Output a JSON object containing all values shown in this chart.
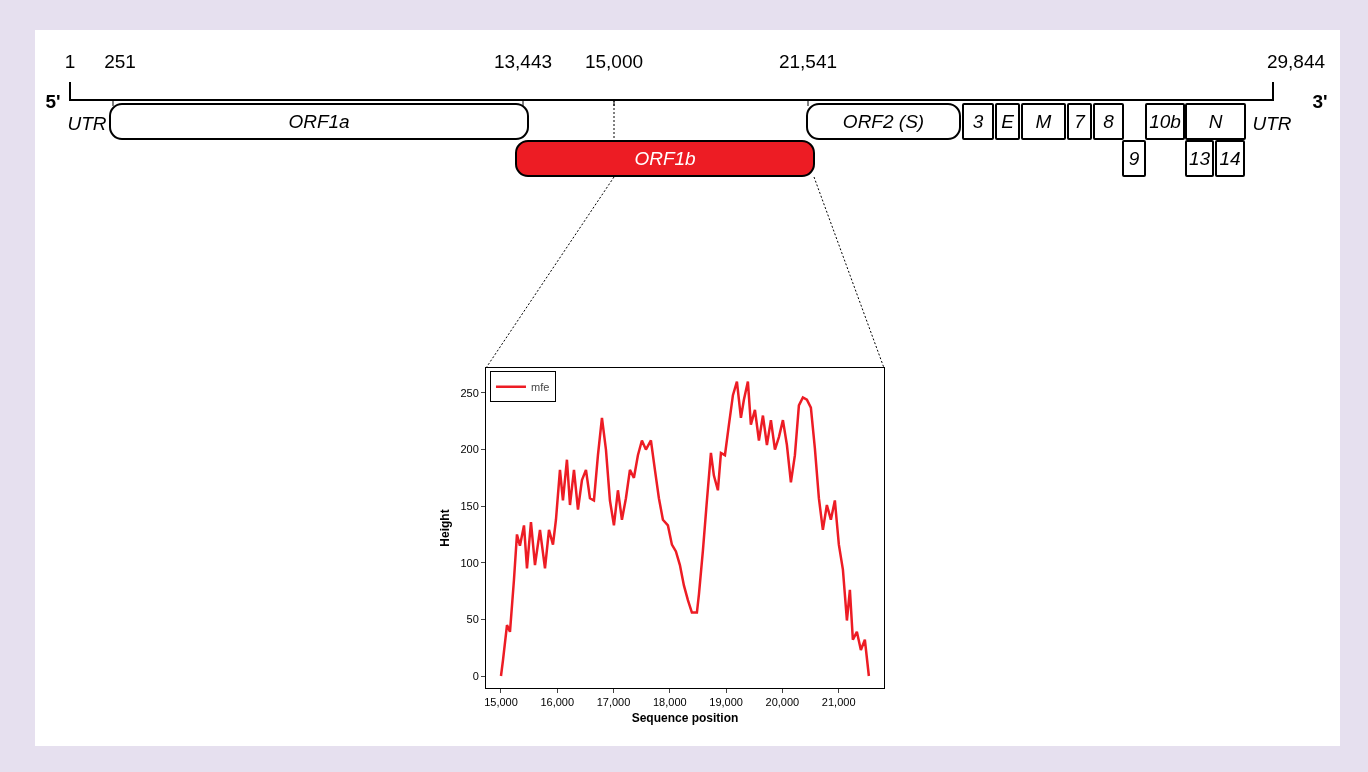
{
  "chart_data": [
    {
      "type": "other",
      "annotations": [
        "1",
        "251",
        "13,443",
        "15,000",
        "21,541",
        "29,844",
        "5'",
        "3'",
        "UTR",
        "UTR"
      ],
      "categories": [
        "ORF1a",
        "ORF1b",
        "ORF2 (S)",
        "3",
        "E",
        "M",
        "7",
        "8",
        "9",
        "10b",
        "N",
        "13",
        "14"
      ],
      "colors": [
        "#ffffff",
        "#ed1c24",
        "#ffffff",
        "#ffffff",
        "#ffffff",
        "#ffffff",
        "#ffffff",
        "#ffffff",
        "#ffffff",
        "#ffffff",
        "#ffffff",
        "#ffffff",
        "#ffffff"
      ]
    },
    {
      "type": "line",
      "xlabel": "Sequence position",
      "ylabel": "Height",
      "legend": "top left",
      "grid": false,
      "xlim": [
        14734,
        21805
      ],
      "ylim": [
        -10.6,
        272
      ],
      "xticks": [
        {
          "value": 15000,
          "label": "15,000"
        },
        {
          "value": 16000,
          "label": "16,000"
        },
        {
          "value": 17000,
          "label": "17,000"
        },
        {
          "value": 18000,
          "label": "18,000"
        },
        {
          "value": 19000,
          "label": "19,000"
        },
        {
          "value": 20000,
          "label": "20,000"
        },
        {
          "value": 21000,
          "label": "21,000"
        }
      ],
      "yticks": [
        0,
        50,
        100,
        150,
        200,
        250
      ],
      "x": [
        15000,
        15036,
        15107,
        15160,
        15231,
        15284,
        15337,
        15409,
        15462,
        15533,
        15604,
        15693,
        15782,
        15853,
        15924,
        15977,
        16048,
        16101,
        16172,
        16226,
        16297,
        16368,
        16439,
        16510,
        16581,
        16652,
        16723,
        16794,
        16865,
        16936,
        17007,
        17078,
        17149,
        17220,
        17291,
        17362,
        17433,
        17504,
        17575,
        17664,
        17735,
        17806,
        17877,
        17966,
        18037,
        18108,
        18179,
        18250,
        18321,
        18392,
        18481,
        18517,
        18588,
        18659,
        18730,
        18783,
        18854,
        18908,
        18979,
        19050,
        19121,
        19192,
        19263,
        19316,
        19387,
        19440,
        19512,
        19583,
        19654,
        19725,
        19796,
        19867,
        19938,
        20009,
        20080,
        20151,
        20222,
        20293,
        20364,
        20435,
        20506,
        20577,
        20648,
        20719,
        20790,
        20861,
        20932,
        21003,
        21075,
        21146,
        21199,
        21252,
        21323,
        21394,
        21465,
        21536
      ],
      "series": [
        {
          "name": "mfe",
          "color": "#ed1c24",
          "values": [
            0,
            14,
            45,
            39,
            85,
            125,
            115,
            133,
            95,
            136,
            98,
            129,
            95,
            129,
            116,
            138,
            182,
            155,
            191,
            151,
            182,
            147,
            173,
            182,
            157,
            155,
            195,
            228,
            200,
            155,
            133,
            164,
            138,
            157,
            182,
            175,
            195,
            208,
            200,
            208,
            182,
            157,
            138,
            133,
            116,
            110,
            98,
            80,
            67,
            56,
            56,
            72,
            111,
            155,
            197,
            177,
            164,
            197,
            195,
            222,
            248,
            260,
            228,
            244,
            260,
            222,
            235,
            208,
            230,
            204,
            226,
            200,
            211,
            226,
            204,
            171,
            195,
            239,
            246,
            244,
            237,
            201,
            157,
            129,
            151,
            138,
            155,
            116,
            94,
            49,
            76,
            32,
            39,
            23,
            32,
            0
          ]
        }
      ]
    }
  ]
}
